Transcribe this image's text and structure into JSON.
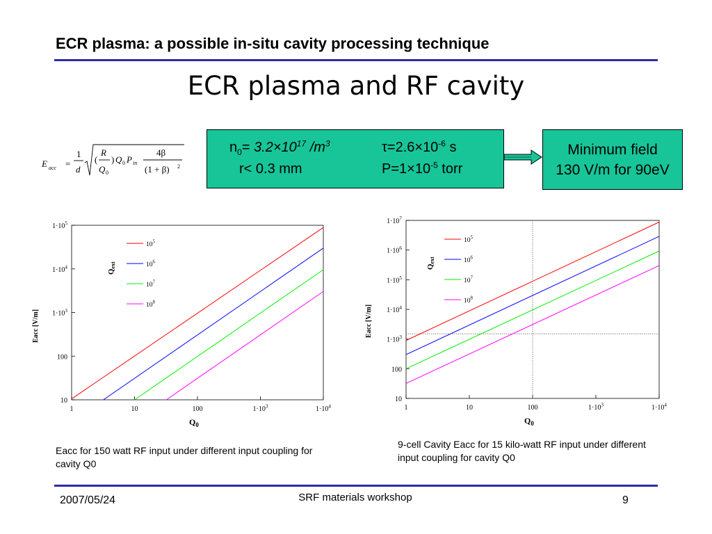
{
  "slide": {
    "header": "ECR plasma: a possible in-situ cavity processing technique",
    "title": "ECR plasma and RF cavity",
    "formula": {
      "lhs": "E",
      "lhs_sub": "acc",
      "eq": "=",
      "one": "1",
      "d": "d",
      "R": "R",
      "Q0": "Q",
      "Q0_sub": "0",
      "paren_close": ")",
      "paren_open": "(",
      "P": "P",
      "P_sub": "in",
      "four_beta": "4β",
      "denom": "(1 + β)",
      "sq": "2"
    },
    "params": {
      "n_label": "n",
      "n_sub": "0",
      "n_eq": "= ",
      "n_val": "3.2×10",
      "n_exp": "17",
      "n_unit": " /m",
      "n_unit_exp": "3",
      "tau": "τ=2.6×10",
      "tau_exp": "-6",
      "tau_unit": " s",
      "r": "r< 0.3 mm",
      "P": "P=1×10",
      "P_exp": "-5",
      "P_unit": " torr"
    },
    "minfield": {
      "line1": "Minimum field",
      "line2": "130 V/m for 90eV"
    },
    "caption_left": "Eacc for 150 watt RF input under different input coupling for cavity Q0",
    "caption_right": "9-cell Cavity Eacc for 15 kilo-watt RF input under different input coupling for cavity Q0",
    "footer": {
      "date": "2007/05/24",
      "center": "SRF materials workshop",
      "page": "9"
    }
  },
  "colors": {
    "rule": "#2b2ba6",
    "box": "#17c598",
    "red": "#ff0000",
    "blue": "#0000ff",
    "green": "#00ee00",
    "magenta": "#ff00ff"
  },
  "chart_data": [
    {
      "type": "line",
      "log_x": true,
      "log_y": true,
      "xlim": [
        1,
        10000
      ],
      "ylim": [
        10,
        100000
      ],
      "x_ticks": [
        1,
        10,
        100,
        1000,
        10000
      ],
      "x_tick_labels": [
        {
          "base": "1",
          "exp": ""
        },
        {
          "base": "10",
          "exp": ""
        },
        {
          "base": "100",
          "exp": ""
        },
        {
          "base": "1·10",
          "exp": "3"
        },
        {
          "base": "1·10",
          "exp": "4"
        }
      ],
      "y_ticks": [
        10,
        100,
        1000,
        10000,
        100000
      ],
      "y_tick_labels": [
        {
          "base": "10",
          "exp": ""
        },
        {
          "base": "100",
          "exp": ""
        },
        {
          "base": "1·10",
          "exp": "3"
        },
        {
          "base": "1·10",
          "exp": "4"
        },
        {
          "base": "1·10",
          "exp": "5"
        }
      ],
      "xlabel": "Q",
      "xlabel_sub": "0",
      "ylabel": "Eacc [V/m]",
      "legend_title": "Q",
      "legend_title_sub": "ext",
      "series": [
        {
          "name": "10",
          "name_exp": "5",
          "color": "#ff0000",
          "x": [
            1,
            10000
          ],
          "y": [
            10.5,
            89000
          ]
        },
        {
          "name": "10",
          "name_exp": "6",
          "color": "#0000ff",
          "x": [
            3.2,
            10000
          ],
          "y": [
            10,
            30000
          ]
        },
        {
          "name": "10",
          "name_exp": "7",
          "color": "#00ee00",
          "x": [
            10,
            10000
          ],
          "y": [
            10,
            9600
          ]
        },
        {
          "name": "10",
          "name_exp": "8",
          "color": "#ff00ff",
          "x": [
            32,
            10000
          ],
          "y": [
            10,
            3050
          ]
        }
      ]
    },
    {
      "type": "line",
      "log_x": true,
      "log_y": true,
      "xlim": [
        1,
        10000
      ],
      "ylim": [
        10,
        10000000
      ],
      "x_ticks": [
        1,
        10,
        100,
        1000,
        10000
      ],
      "x_tick_labels": [
        {
          "base": "1",
          "exp": ""
        },
        {
          "base": "10",
          "exp": ""
        },
        {
          "base": "100",
          "exp": ""
        },
        {
          "base": "1·10",
          "exp": "3"
        },
        {
          "base": "1·10",
          "exp": "4"
        }
      ],
      "y_ticks": [
        10,
        100,
        1000,
        10000,
        100000,
        1000000,
        10000000
      ],
      "y_tick_labels": [
        {
          "base": "10",
          "exp": ""
        },
        {
          "base": "100",
          "exp": ""
        },
        {
          "base": "1·10",
          "exp": "3"
        },
        {
          "base": "1·10",
          "exp": "4"
        },
        {
          "base": "1·10",
          "exp": "5"
        },
        {
          "base": "1·10",
          "exp": "6"
        },
        {
          "base": "1·10",
          "exp": "7"
        }
      ],
      "xlabel": "Q",
      "xlabel_sub": "0",
      "ylabel": "Eacc [V/m]",
      "legend_title": "Q",
      "legend_title_sub": "ext",
      "ref_lines": {
        "x": 100,
        "y": 1500
      },
      "series": [
        {
          "name": "10",
          "name_exp": "5",
          "color": "#ff0000",
          "x": [
            1,
            10000
          ],
          "y": [
            900,
            8800000
          ]
        },
        {
          "name": "10",
          "name_exp": "6",
          "color": "#0000ff",
          "x": [
            1,
            10000
          ],
          "y": [
            300,
            2900000
          ]
        },
        {
          "name": "10",
          "name_exp": "7",
          "color": "#00ee00",
          "x": [
            1,
            10000
          ],
          "y": [
            100,
            930000
          ]
        },
        {
          "name": "10",
          "name_exp": "8",
          "color": "#ff00ff",
          "x": [
            1,
            10000
          ],
          "y": [
            32,
            300000
          ]
        }
      ]
    }
  ]
}
